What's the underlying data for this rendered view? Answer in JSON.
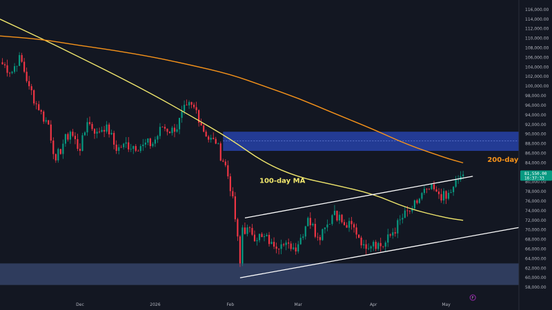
{
  "chart_data": {
    "type": "candlestick",
    "y_axis": {
      "range": [
        55000,
        118000
      ],
      "ticks": [
        58000,
        60000,
        62000,
        64000,
        66000,
        68000,
        70000,
        72000,
        74000,
        76000,
        78000,
        80000,
        82000,
        84000,
        86000,
        88000,
        90000,
        92000,
        94000,
        96000,
        98000,
        100000,
        102000,
        104000,
        106000,
        108000,
        110000,
        112000,
        114000,
        116000
      ],
      "tick_labels": [
        "58,000.00",
        "60,000.00",
        "62,000.00",
        "64,000.00",
        "66,000.00",
        "68,000.00",
        "70,000.00",
        "72,000.00",
        "74,000.00",
        "76,000.00",
        "78,000.00",
        "80,000.00",
        "82,000.00",
        "84,000.00",
        "86,000.00",
        "88,000.00",
        "90,000.00",
        "92,000.00",
        "94,000.00",
        "96,000.00",
        "98,000.00",
        "100,000.00",
        "102,000.00",
        "104,000.00",
        "106,000.00",
        "108,000.00",
        "110,000.00",
        "112,000.00",
        "114,000.00",
        "116,000.00"
      ],
      "position": "right"
    },
    "x_axis": {
      "range": [
        "2025-10-29",
        "2026-05-31"
      ],
      "tick_labels": [
        {
          "date": "2025-12-01",
          "label": "Dec"
        },
        {
          "date": "2026-01-01",
          "label": "2026"
        },
        {
          "date": "2026-02-01",
          "label": "Feb"
        },
        {
          "date": "2026-03-01",
          "label": "Mar"
        },
        {
          "date": "2026-04-01",
          "label": "Apr"
        },
        {
          "date": "2026-05-01",
          "label": "May"
        }
      ]
    },
    "price_anchors": [
      [
        "2025-10-29",
        105000
      ],
      [
        "2025-11-03",
        103000
      ],
      [
        "2025-11-06",
        106500
      ],
      [
        "2025-11-10",
        100000
      ],
      [
        "2025-11-14",
        95000
      ],
      [
        "2025-11-18",
        92000
      ],
      [
        "2025-11-21",
        84500
      ],
      [
        "2025-11-24",
        88000
      ],
      [
        "2025-11-27",
        90500
      ],
      [
        "2025-12-01",
        86500
      ],
      [
        "2025-12-04",
        92500
      ],
      [
        "2025-12-08",
        90500
      ],
      [
        "2025-12-12",
        92000
      ],
      [
        "2025-12-16",
        86500
      ],
      [
        "2025-12-19",
        88000
      ],
      [
        "2025-12-23",
        87500
      ],
      [
        "2025-12-27",
        87800
      ],
      [
        "2025-12-31",
        88000
      ],
      [
        "2026-01-04",
        91500
      ],
      [
        "2026-01-09",
        90500
      ],
      [
        "2026-01-14",
        96000
      ],
      [
        "2026-01-18",
        95000
      ],
      [
        "2026-01-22",
        89500
      ],
      [
        "2026-01-26",
        88000
      ],
      [
        "2026-01-30",
        83500
      ],
      [
        "2026-02-02",
        77000
      ],
      [
        "2026-02-05",
        63000
      ],
      [
        "2026-02-06",
        70500
      ],
      [
        "2026-02-10",
        69000
      ],
      [
        "2026-02-14",
        68500
      ],
      [
        "2026-02-18",
        67500
      ],
      [
        "2026-02-22",
        67000
      ],
      [
        "2026-02-26",
        66000
      ],
      [
        "2026-03-01",
        67000
      ],
      [
        "2026-03-05",
        72500
      ],
      [
        "2026-03-09",
        68500
      ],
      [
        "2026-03-12",
        70500
      ],
      [
        "2026-03-16",
        74000
      ],
      [
        "2026-03-20",
        71000
      ],
      [
        "2026-03-24",
        70500
      ],
      [
        "2026-03-28",
        67000
      ],
      [
        "2026-04-01",
        67500
      ],
      [
        "2026-04-05",
        66500
      ],
      [
        "2026-04-09",
        69500
      ],
      [
        "2026-04-13",
        72500
      ],
      [
        "2026-04-17",
        74500
      ],
      [
        "2026-04-20",
        76500
      ],
      [
        "2026-04-23",
        78500
      ],
      [
        "2026-04-27",
        78000
      ],
      [
        "2026-05-01",
        76500
      ],
      [
        "2026-05-04",
        79000
      ],
      [
        "2026-05-07",
        81200
      ],
      [
        "2026-05-08",
        81550
      ]
    ],
    "moving_averages": [
      {
        "name": "100-day MA",
        "color": "#f2e86d",
        "points": [
          [
            "2025-10-29",
            114000
          ],
          [
            "2025-11-15",
            110000
          ],
          [
            "2025-12-01",
            106000
          ],
          [
            "2025-12-15",
            102500
          ],
          [
            "2026-01-01",
            98000
          ],
          [
            "2026-01-15",
            94000
          ],
          [
            "2026-02-01",
            89000
          ],
          [
            "2026-02-15",
            84000
          ],
          [
            "2026-03-01",
            81000
          ],
          [
            "2026-03-15",
            79500
          ],
          [
            "2026-04-01",
            77500
          ],
          [
            "2026-04-15",
            74500
          ],
          [
            "2026-05-01",
            72500
          ],
          [
            "2026-05-08",
            72000
          ]
        ]
      },
      {
        "name": "200-day MA",
        "color": "#f7931a",
        "points": [
          [
            "2025-10-29",
            110500
          ],
          [
            "2025-11-15",
            109800
          ],
          [
            "2025-12-01",
            108500
          ],
          [
            "2025-12-15",
            107500
          ],
          [
            "2026-01-01",
            106000
          ],
          [
            "2026-01-15",
            104500
          ],
          [
            "2026-02-01",
            102500
          ],
          [
            "2026-02-15",
            100000
          ],
          [
            "2026-03-01",
            97500
          ],
          [
            "2026-03-15",
            94500
          ],
          [
            "2026-04-01",
            91000
          ],
          [
            "2026-04-15",
            87800
          ],
          [
            "2026-05-01",
            85000
          ],
          [
            "2026-05-08",
            84000
          ]
        ]
      }
    ],
    "zones": [
      {
        "name": "resistance-zone",
        "from": "2026-01-29",
        "to": "2026-05-31",
        "low": 86500,
        "high": 90500,
        "mid": 88600,
        "color": "#2742a8"
      },
      {
        "name": "support-zone",
        "from": "2025-10-29",
        "to": "2026-05-31",
        "low": 58500,
        "high": 63000,
        "color": "#3a4a72"
      }
    ],
    "channel_lines": [
      {
        "name": "channel-upper-line",
        "from": [
          "2026-02-07",
          72500
        ],
        "to": [
          "2026-05-12",
          81200
        ]
      },
      {
        "name": "channel-lower-line",
        "from": [
          "2026-02-05",
          60000
        ],
        "to": [
          "2026-05-31",
          70500
        ]
      }
    ],
    "annotations": [
      {
        "text": "100-day MA",
        "date": "2026-02-13",
        "value": 79800,
        "color": "#f2e86d"
      },
      {
        "text": "200-day MA",
        "date": "2026-05-18",
        "value": 84200,
        "color": "#f7931a"
      }
    ],
    "last_price": {
      "value": "81,550.00",
      "timer": "16:37:33",
      "color": "#089981"
    },
    "dividend_marker": {
      "label": "F",
      "date": "2026-05-12"
    }
  }
}
